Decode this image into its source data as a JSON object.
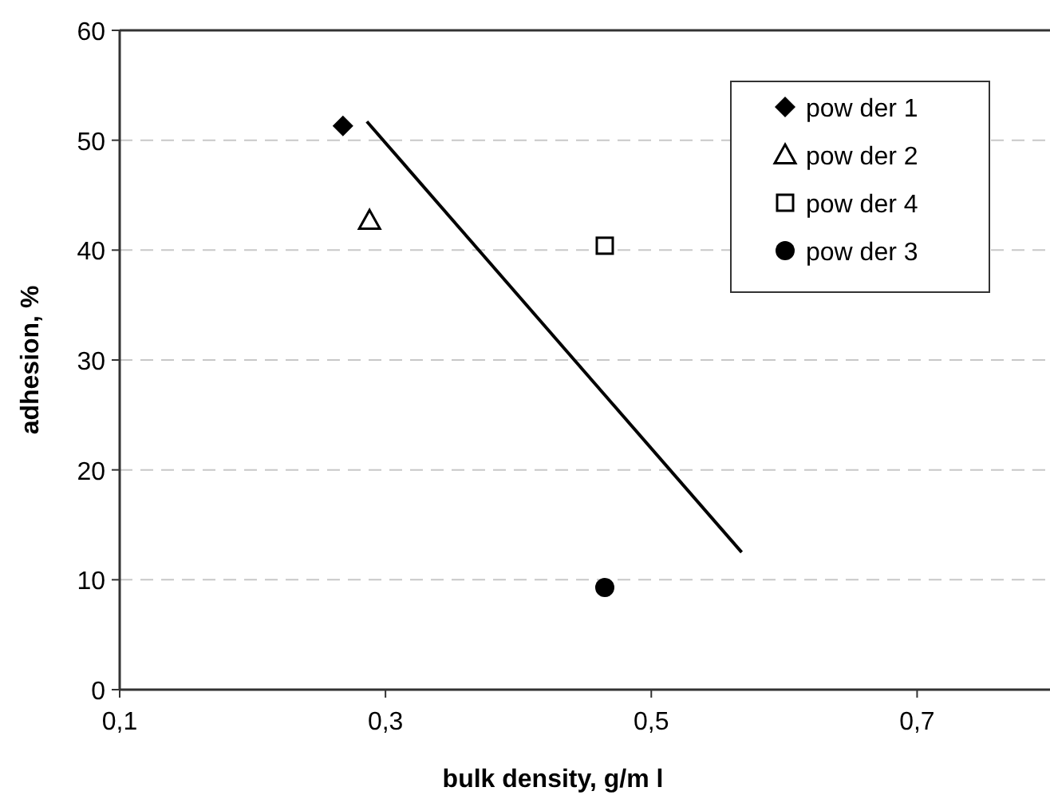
{
  "chart_data": {
    "type": "scatter",
    "xlabel": "bulk density, g/m l",
    "ylabel": "adhesion, %",
    "xlim": [
      0.1,
      0.8
    ],
    "xticks": [
      {
        "value": 0.1,
        "label": "0,1"
      },
      {
        "value": 0.3,
        "label": "0,3"
      },
      {
        "value": 0.5,
        "label": "0,5"
      },
      {
        "value": 0.7,
        "label": "0,7"
      }
    ],
    "ylim": [
      0,
      60
    ],
    "yticks": [
      0,
      10,
      20,
      30,
      40,
      50,
      60
    ],
    "grid": "y",
    "legend": "top right",
    "series": [
      {
        "name": "pow der 1",
        "color": "#000000",
        "marker": "diamond",
        "x": [
          0.268
        ],
        "values": [
          51.3
        ]
      },
      {
        "name": "pow der 2",
        "color": "#000000",
        "marker": "triangle",
        "x": [
          0.288
        ],
        "values": [
          42.7
        ]
      },
      {
        "name": "pow der 4",
        "color": "#000000",
        "marker": "square",
        "x": [
          0.465
        ],
        "values": [
          40.4
        ]
      },
      {
        "name": "pow der 3",
        "color": "#000000",
        "marker": "circle",
        "x": [
          0.465
        ],
        "values": [
          9.3
        ]
      },
      {
        "type": "line",
        "color": "#000000",
        "x": [
          0.286,
          0.568
        ],
        "values": [
          51.7,
          12.5
        ]
      }
    ]
  }
}
